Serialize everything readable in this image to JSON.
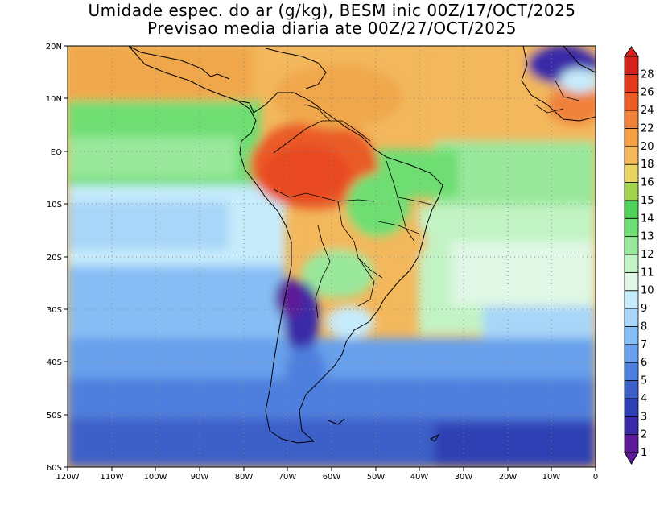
{
  "title": {
    "line1": "Umidade espec. do ar (g/kg), BESM inic 00Z/17/OCT/2025",
    "line2": "Previsao media diaria ate 00Z/27/OCT/2025"
  },
  "map": {
    "lon_range": [
      -120,
      0
    ],
    "lat_range": [
      -60,
      20
    ],
    "grid": "dotted",
    "lon_tick_labels": [
      "120W",
      "110W",
      "100W",
      "90W",
      "80W",
      "70W",
      "60W",
      "50W",
      "40W",
      "30W",
      "20W",
      "10W",
      "0"
    ],
    "lat_tick_labels": [
      "20N",
      "10N",
      "EQ",
      "10S",
      "20S",
      "30S",
      "40S",
      "50S",
      "60S"
    ]
  },
  "colorbar": {
    "levels": [
      "1",
      "2",
      "3",
      "4",
      "5",
      "6",
      "7",
      "8",
      "9",
      "10",
      "11",
      "12",
      "13",
      "14",
      "15",
      "16",
      "18",
      "20",
      "22",
      "24",
      "26",
      "28"
    ],
    "colors": [
      "#5c1a98",
      "#3a2aa8",
      "#2e3fb3",
      "#3c5fc8",
      "#4f7fde",
      "#67a0ec",
      "#86bdf4",
      "#a8d6f8",
      "#c6ebfb",
      "#dff7e4",
      "#c2f3c4",
      "#9ae89c",
      "#6ede73",
      "#4fd05a",
      "#a2d24e",
      "#e8d363",
      "#f3b75c",
      "#f49f44",
      "#f0813a",
      "#ea5b26",
      "#e23a1b",
      "#d4231a"
    ]
  }
}
